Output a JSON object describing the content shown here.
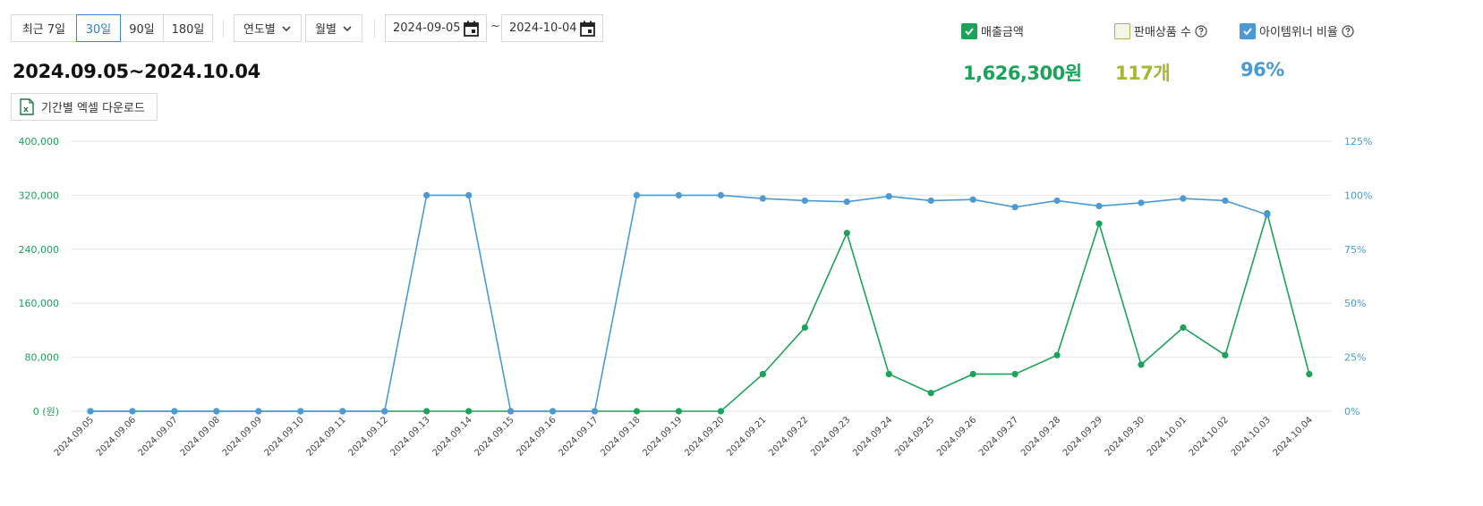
{
  "toolbar": {
    "ranges": [
      "최근 7일",
      "30일",
      "90일",
      "180일"
    ],
    "active_range": "30일",
    "year_select": "연도별",
    "month_select": "월별",
    "start_date": "2024-09-05",
    "end_date": "2024-10-04",
    "date_separator": "~"
  },
  "period_title": "2024.09.05~2024.10.04",
  "excel_button": "기간별 엑셀 다운로드",
  "legend": [
    {
      "label": "매출금액",
      "checked": true,
      "color": "#1ba35a"
    },
    {
      "label": "판매상품 수",
      "checked": false,
      "color": "#a4b832"
    },
    {
      "label": "아이템위너 비율",
      "checked": true,
      "color": "#4a9ad8"
    }
  ],
  "metrics": {
    "sales": "1,626,300원",
    "products": "117개",
    "winner_ratio": "96%"
  },
  "colors": {
    "sales": "#1ba35a",
    "products": "#a4b832",
    "winner": "#4a9ad8",
    "active": "#2f7fd3"
  },
  "chart_data": {
    "type": "line",
    "x": [
      "2024.09.05",
      "2024.09.06",
      "2024.09.07",
      "2024.09.08",
      "2024.09.09",
      "2024.09.10",
      "2024.09.11",
      "2024.09.12",
      "2024.09.13",
      "2024.09.14",
      "2024.09.15",
      "2024.09.16",
      "2024.09.17",
      "2024.09.18",
      "2024.09.19",
      "2024.09.20",
      "2024.09.21",
      "2024.09.22",
      "2024.09.23",
      "2024.09.24",
      "2024.09.25",
      "2024.09.26",
      "2024.09.27",
      "2024.09.28",
      "2024.09.29",
      "2024.09.30",
      "2024.10.01",
      "2024.10.02",
      "2024.10.03",
      "2024.10.04"
    ],
    "y_left": {
      "ticks": [
        "0 (원)",
        "80,000",
        "160,000",
        "240,000",
        "320,000",
        "400,000"
      ],
      "ylim": [
        0,
        400000
      ]
    },
    "y_right": {
      "ticks": [
        "0%",
        "25%",
        "50%",
        "75%",
        "100%",
        "125%"
      ],
      "ylim": [
        0,
        125
      ]
    },
    "grid": true,
    "series": [
      {
        "name": "매출금액",
        "axis": "left",
        "color": "#1ba35a",
        "values": [
          0,
          0,
          0,
          0,
          0,
          0,
          0,
          0,
          0,
          0,
          0,
          0,
          0,
          0,
          0,
          0,
          55000,
          124000,
          264000,
          55000,
          27000,
          55000,
          55000,
          83000,
          278000,
          69000,
          124000,
          83000,
          293000,
          55000
        ]
      },
      {
        "name": "아이템위너 비율",
        "axis": "right",
        "color": "#4a9ad8",
        "values": [
          0,
          0,
          0,
          0,
          0,
          0,
          0,
          0,
          100,
          100,
          0,
          0,
          0,
          100,
          100,
          100,
          98.5,
          97.5,
          97,
          99.5,
          97.5,
          98,
          94.5,
          97.5,
          95,
          96.5,
          98.5,
          97.5,
          91,
          null
        ]
      }
    ]
  }
}
